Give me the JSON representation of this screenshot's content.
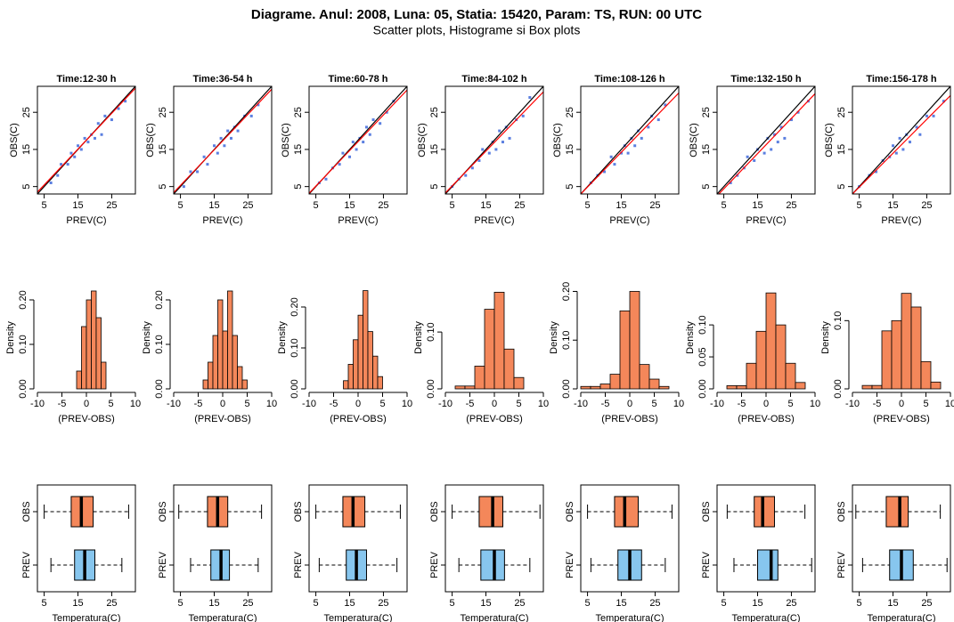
{
  "title": "Diagrame. Anul: 2008, Luna: 05, Statia: 15420, Param: TS, RUN: 00 UTC",
  "subtitle": "Scatter plots, Histograme si Box plots",
  "chart_data": [
    {
      "type": "scatter",
      "title": "Time:12-30 h",
      "x_label": "PREV(C)",
      "y_label": "OBS(C)",
      "color": "#5b7fe0",
      "x": [
        7,
        9,
        10,
        12,
        13,
        14,
        15,
        16,
        17,
        18,
        19,
        20,
        21,
        22,
        23,
        25,
        27,
        29
      ],
      "y": [
        6,
        8,
        11,
        11,
        14,
        13,
        16,
        15,
        18,
        17,
        19,
        18,
        22,
        19,
        24,
        23,
        26,
        28
      ],
      "lines": [
        {
          "color": "#000000",
          "x": [
            3,
            32
          ],
          "y": [
            3,
            32
          ]
        },
        {
          "color": "#ff0000",
          "x": [
            3,
            32
          ],
          "y": [
            3.5,
            31.5
          ]
        }
      ],
      "xlim": [
        3,
        32
      ],
      "ylim": [
        3,
        32
      ],
      "xticks": [
        5,
        15,
        25
      ],
      "yticks": [
        5,
        15,
        25
      ]
    },
    {
      "type": "scatter",
      "title": "Time:36-54 h",
      "x_label": "PREV(C)",
      "y_label": "OBS(C)",
      "color": "#5b7fe0",
      "x": [
        6,
        8,
        10,
        12,
        13,
        15,
        16,
        17,
        18,
        19,
        20,
        21,
        22,
        24,
        26,
        28
      ],
      "y": [
        5,
        9,
        9,
        13,
        11,
        16,
        14,
        18,
        16,
        20,
        18,
        21,
        20,
        24,
        24,
        27
      ],
      "lines": [
        {
          "color": "#000000",
          "x": [
            3,
            32
          ],
          "y": [
            3,
            32
          ]
        },
        {
          "color": "#ff0000",
          "x": [
            3,
            32
          ],
          "y": [
            3.4,
            31.2
          ]
        }
      ],
      "xlim": [
        3,
        32
      ],
      "ylim": [
        3,
        32
      ],
      "xticks": [
        5,
        15,
        25
      ],
      "yticks": [
        5,
        15,
        25
      ]
    },
    {
      "type": "scatter",
      "title": "Time:60-78 h",
      "x_label": "PREV(C)",
      "y_label": "OBS(C)",
      "color": "#5b7fe0",
      "x": [
        6,
        8,
        10,
        12,
        13,
        15,
        16,
        17,
        18,
        19,
        20,
        21,
        22,
        24,
        26,
        28
      ],
      "y": [
        6,
        7,
        10,
        11,
        14,
        13,
        17,
        15,
        18,
        17,
        21,
        19,
        23,
        22,
        25,
        28
      ],
      "lines": [
        {
          "color": "#000000",
          "x": [
            3,
            32
          ],
          "y": [
            3,
            32
          ]
        },
        {
          "color": "#ff0000",
          "x": [
            3,
            32
          ],
          "y": [
            3.2,
            31
          ]
        }
      ],
      "xlim": [
        3,
        32
      ],
      "ylim": [
        3,
        32
      ],
      "xticks": [
        5,
        15,
        25
      ],
      "yticks": [
        5,
        15,
        25
      ]
    },
    {
      "type": "scatter",
      "title": "Time:84-102 h",
      "x_label": "PREV(C)",
      "y_label": "OBS(C)",
      "color": "#5b7fe0",
      "x": [
        5,
        7,
        9,
        11,
        13,
        14,
        16,
        17,
        18,
        19,
        20,
        21,
        22,
        24,
        26,
        28
      ],
      "y": [
        5,
        7,
        8,
        10,
        12,
        15,
        14,
        17,
        15,
        20,
        17,
        21,
        18,
        23,
        24,
        29
      ],
      "lines": [
        {
          "color": "#000000",
          "x": [
            3,
            32
          ],
          "y": [
            3,
            32
          ]
        },
        {
          "color": "#ff0000",
          "x": [
            3,
            32
          ],
          "y": [
            3.3,
            30.5
          ]
        }
      ],
      "xlim": [
        3,
        32
      ],
      "ylim": [
        3,
        32
      ],
      "xticks": [
        5,
        15,
        25
      ],
      "yticks": [
        5,
        15,
        25
      ]
    },
    {
      "type": "scatter",
      "title": "Time:108-126 h",
      "x_label": "PREV(C)",
      "y_label": "OBS(C)",
      "color": "#5b7fe0",
      "x": [
        6,
        8,
        10,
        12,
        13,
        15,
        16,
        17,
        18,
        19,
        20,
        21,
        23,
        24,
        26,
        28
      ],
      "y": [
        6,
        8,
        9,
        13,
        11,
        14,
        16,
        14,
        18,
        16,
        20,
        18,
        21,
        24,
        23,
        27
      ],
      "lines": [
        {
          "color": "#000000",
          "x": [
            3,
            32
          ],
          "y": [
            3,
            32
          ]
        },
        {
          "color": "#ff0000",
          "x": [
            3,
            32
          ],
          "y": [
            3,
            30.2
          ]
        }
      ],
      "xlim": [
        3,
        32
      ],
      "ylim": [
        3,
        32
      ],
      "xticks": [
        5,
        15,
        25
      ],
      "yticks": [
        5,
        15,
        25
      ]
    },
    {
      "type": "scatter",
      "title": "Time:132-150 h",
      "x_label": "PREV(C)",
      "y_label": "OBS(C)",
      "color": "#5b7fe0",
      "x": [
        7,
        9,
        11,
        12,
        14,
        15,
        17,
        18,
        19,
        20,
        21,
        22,
        23,
        25,
        27,
        30
      ],
      "y": [
        6,
        8,
        10,
        13,
        12,
        15,
        14,
        18,
        15,
        19,
        17,
        21,
        18,
        23,
        25,
        28
      ],
      "lines": [
        {
          "color": "#000000",
          "x": [
            3,
            32
          ],
          "y": [
            3,
            32
          ]
        },
        {
          "color": "#ff0000",
          "x": [
            3,
            32
          ],
          "y": [
            2.5,
            30
          ]
        }
      ],
      "xlim": [
        3,
        32
      ],
      "ylim": [
        3,
        32
      ],
      "xticks": [
        5,
        15,
        25
      ],
      "yticks": [
        5,
        15,
        25
      ]
    },
    {
      "type": "scatter",
      "title": "Time:156-178 h",
      "x_label": "PREV(C)",
      "y_label": "OBS(C)",
      "color": "#5b7fe0",
      "x": [
        5,
        8,
        10,
        12,
        14,
        15,
        16,
        17,
        18,
        19,
        20,
        22,
        23,
        25,
        27,
        30
      ],
      "y": [
        5,
        8,
        9,
        12,
        13,
        16,
        14,
        18,
        15,
        19,
        17,
        21,
        19,
        24,
        24,
        28
      ],
      "lines": [
        {
          "color": "#000000",
          "x": [
            3,
            32
          ],
          "y": [
            3,
            32
          ]
        },
        {
          "color": "#ff0000",
          "x": [
            3,
            32
          ],
          "y": [
            3,
            29.5
          ]
        }
      ],
      "xlim": [
        3,
        32
      ],
      "ylim": [
        3,
        32
      ],
      "xticks": [
        5,
        15,
        25
      ],
      "yticks": [
        5,
        15,
        25
      ]
    },
    {
      "type": "histogram",
      "x_label": "(PREV-OBS)",
      "y_label": "Density",
      "color": "#f4875a",
      "bins": [
        -2,
        -1,
        0,
        1,
        2,
        3,
        4
      ],
      "values": [
        0.04,
        0.14,
        0.2,
        0.22,
        0.16,
        0.06
      ],
      "xlim": [
        -10,
        10
      ],
      "ylim": [
        0,
        0.23
      ],
      "xticks": [
        -10,
        -5,
        0,
        5,
        10
      ],
      "yticks": [
        {
          "value": 0,
          "label": "0.00"
        },
        {
          "value": 0.1,
          "label": "0.10"
        },
        {
          "value": 0.2,
          "label": "0.20"
        }
      ]
    },
    {
      "type": "histogram",
      "x_label": "(PREV-OBS)",
      "y_label": "Density",
      "color": "#f4875a",
      "bins": [
        -4,
        -3,
        -2,
        -1,
        0,
        1,
        2,
        3,
        4,
        5
      ],
      "values": [
        0.02,
        0.06,
        0.12,
        0.2,
        0.13,
        0.22,
        0.12,
        0.05,
        0.02
      ],
      "xlim": [
        -10,
        10
      ],
      "ylim": [
        0,
        0.23
      ],
      "xticks": [
        -10,
        -5,
        0,
        5,
        10
      ],
      "yticks": [
        {
          "value": 0,
          "label": "0.00"
        },
        {
          "value": 0.1,
          "label": "0.10"
        },
        {
          "value": 0.2,
          "label": "0.20"
        }
      ]
    },
    {
      "type": "histogram",
      "x_label": "(PREV-OBS)",
      "y_label": "Density",
      "color": "#f4875a",
      "bins": [
        -3,
        -2,
        -1,
        0,
        1,
        2,
        3,
        4,
        5
      ],
      "values": [
        0.02,
        0.06,
        0.12,
        0.18,
        0.24,
        0.14,
        0.08,
        0.03
      ],
      "xlim": [
        -10,
        10
      ],
      "ylim": [
        0,
        0.25
      ],
      "xticks": [
        -10,
        -5,
        0,
        5,
        10
      ],
      "yticks": [
        {
          "value": 0,
          "label": "0.00"
        },
        {
          "value": 0.1,
          "label": "0.10"
        },
        {
          "value": 0.2,
          "label": "0.20"
        }
      ]
    },
    {
      "type": "histogram",
      "x_label": "(PREV-OBS)",
      "y_label": "Density",
      "color": "#f4875a",
      "bins": [
        -8,
        -6,
        -4,
        -2,
        0,
        2,
        4,
        6
      ],
      "values": [
        0.005,
        0.005,
        0.04,
        0.14,
        0.17,
        0.07,
        0.02
      ],
      "xlim": [
        -10,
        10
      ],
      "ylim": [
        0,
        0.18
      ],
      "xticks": [
        -10,
        -5,
        0,
        5,
        10
      ],
      "yticks": [
        {
          "value": 0,
          "label": "0.00"
        },
        {
          "value": 0.1,
          "label": "0.10"
        }
      ]
    },
    {
      "type": "histogram",
      "x_label": "(PREV-OBS)",
      "y_label": "Density",
      "color": "#f4875a",
      "bins": [
        -10,
        -8,
        -6,
        -4,
        -2,
        0,
        2,
        4,
        6,
        8
      ],
      "values": [
        0.005,
        0.005,
        0.01,
        0.03,
        0.16,
        0.2,
        0.05,
        0.02,
        0.005
      ],
      "xlim": [
        -10,
        10
      ],
      "ylim": [
        0,
        0.21
      ],
      "xticks": [
        -10,
        -5,
        0,
        5,
        10
      ],
      "yticks": [
        {
          "value": 0,
          "label": "0.00"
        },
        {
          "value": 0.1,
          "label": "0.10"
        },
        {
          "value": 0.2,
          "label": "0.20"
        }
      ]
    },
    {
      "type": "histogram",
      "x_label": "(PREV-OBS)",
      "y_label": "Density",
      "color": "#f4875a",
      "bins": [
        -8,
        -6,
        -4,
        -2,
        0,
        2,
        4,
        6,
        8
      ],
      "values": [
        0.005,
        0.005,
        0.04,
        0.09,
        0.15,
        0.1,
        0.04,
        0.01
      ],
      "xlim": [
        -10,
        10
      ],
      "ylim": [
        0,
        0.16
      ],
      "xticks": [
        -10,
        -5,
        0,
        5,
        10
      ],
      "yticks": [
        {
          "value": 0,
          "label": "0.00"
        },
        {
          "value": 0.05,
          "label": "0.05"
        },
        {
          "value": 0.1,
          "label": "0.10"
        }
      ]
    },
    {
      "type": "histogram",
      "x_label": "(PREV-OBS)",
      "y_label": "Density",
      "color": "#f4875a",
      "bins": [
        -8,
        -6,
        -4,
        -2,
        0,
        2,
        4,
        6,
        8
      ],
      "values": [
        0.005,
        0.005,
        0.085,
        0.1,
        0.14,
        0.12,
        0.04,
        0.01
      ],
      "xlim": [
        -10,
        10
      ],
      "ylim": [
        0,
        0.15
      ],
      "xticks": [
        -10,
        -5,
        0,
        5,
        10
      ],
      "yticks": [
        {
          "value": 0,
          "label": "0.00"
        },
        {
          "value": 0.1,
          "label": "0.10"
        }
      ]
    },
    {
      "type": "box",
      "x_label": "Temperatura(C)",
      "xlim": [
        3,
        32
      ],
      "xticks": [
        5,
        15,
        25
      ],
      "boxes": [
        {
          "name": "OBS",
          "color": "#f4875a",
          "min": 5,
          "q1": 13,
          "median": 16,
          "q3": 19.5,
          "max": 30
        },
        {
          "name": "PREV",
          "color": "#87c6ee",
          "min": 7,
          "q1": 14,
          "median": 17,
          "q3": 20,
          "max": 28
        }
      ]
    },
    {
      "type": "box",
      "x_label": "Temperatura(C)",
      "xlim": [
        3,
        32
      ],
      "xticks": [
        5,
        15,
        25
      ],
      "boxes": [
        {
          "name": "OBS",
          "color": "#f4875a",
          "min": 4.5,
          "q1": 13,
          "median": 16,
          "q3": 19,
          "max": 29
        },
        {
          "name": "PREV",
          "color": "#87c6ee",
          "min": 8,
          "q1": 14,
          "median": 17,
          "q3": 19.5,
          "max": 28
        }
      ]
    },
    {
      "type": "box",
      "x_label": "Temperatura(C)",
      "xlim": [
        3,
        32
      ],
      "xticks": [
        5,
        15,
        25
      ],
      "boxes": [
        {
          "name": "OBS",
          "color": "#f4875a",
          "min": 5,
          "q1": 13,
          "median": 16,
          "q3": 19.5,
          "max": 30
        },
        {
          "name": "PREV",
          "color": "#87c6ee",
          "min": 6,
          "q1": 14,
          "median": 17,
          "q3": 20,
          "max": 29
        }
      ]
    },
    {
      "type": "box",
      "x_label": "Temperatura(C)",
      "xlim": [
        3,
        32
      ],
      "xticks": [
        5,
        15,
        25
      ],
      "boxes": [
        {
          "name": "OBS",
          "color": "#f4875a",
          "min": 5,
          "q1": 13,
          "median": 17,
          "q3": 20,
          "max": 31
        },
        {
          "name": "PREV",
          "color": "#87c6ee",
          "min": 7,
          "q1": 13.5,
          "median": 17.5,
          "q3": 20.5,
          "max": 28
        }
      ]
    },
    {
      "type": "box",
      "x_label": "Temperatura(C)",
      "xlim": [
        3,
        32
      ],
      "xticks": [
        5,
        15,
        25
      ],
      "boxes": [
        {
          "name": "OBS",
          "color": "#f4875a",
          "min": 5,
          "q1": 13,
          "median": 16,
          "q3": 20,
          "max": 30
        },
        {
          "name": "PREV",
          "color": "#87c6ee",
          "min": 6,
          "q1": 14,
          "median": 17.5,
          "q3": 21,
          "max": 28
        }
      ]
    },
    {
      "type": "box",
      "x_label": "Temperatura(C)",
      "xlim": [
        3,
        32
      ],
      "xticks": [
        5,
        15,
        25
      ],
      "boxes": [
        {
          "name": "OBS",
          "color": "#f4875a",
          "min": 6,
          "q1": 14,
          "median": 16.5,
          "q3": 20,
          "max": 29
        },
        {
          "name": "PREV",
          "color": "#87c6ee",
          "min": 8,
          "q1": 15,
          "median": 19,
          "q3": 21,
          "max": 31
        }
      ]
    },
    {
      "type": "box",
      "x_label": "Temperatura(C)",
      "xlim": [
        3,
        32
      ],
      "xticks": [
        5,
        15,
        25
      ],
      "boxes": [
        {
          "name": "OBS",
          "color": "#f4875a",
          "min": 4,
          "q1": 13,
          "median": 17,
          "q3": 19.5,
          "max": 29
        },
        {
          "name": "PREV",
          "color": "#87c6ee",
          "min": 6,
          "q1": 14,
          "median": 17.5,
          "q3": 21,
          "max": 31
        }
      ]
    }
  ]
}
